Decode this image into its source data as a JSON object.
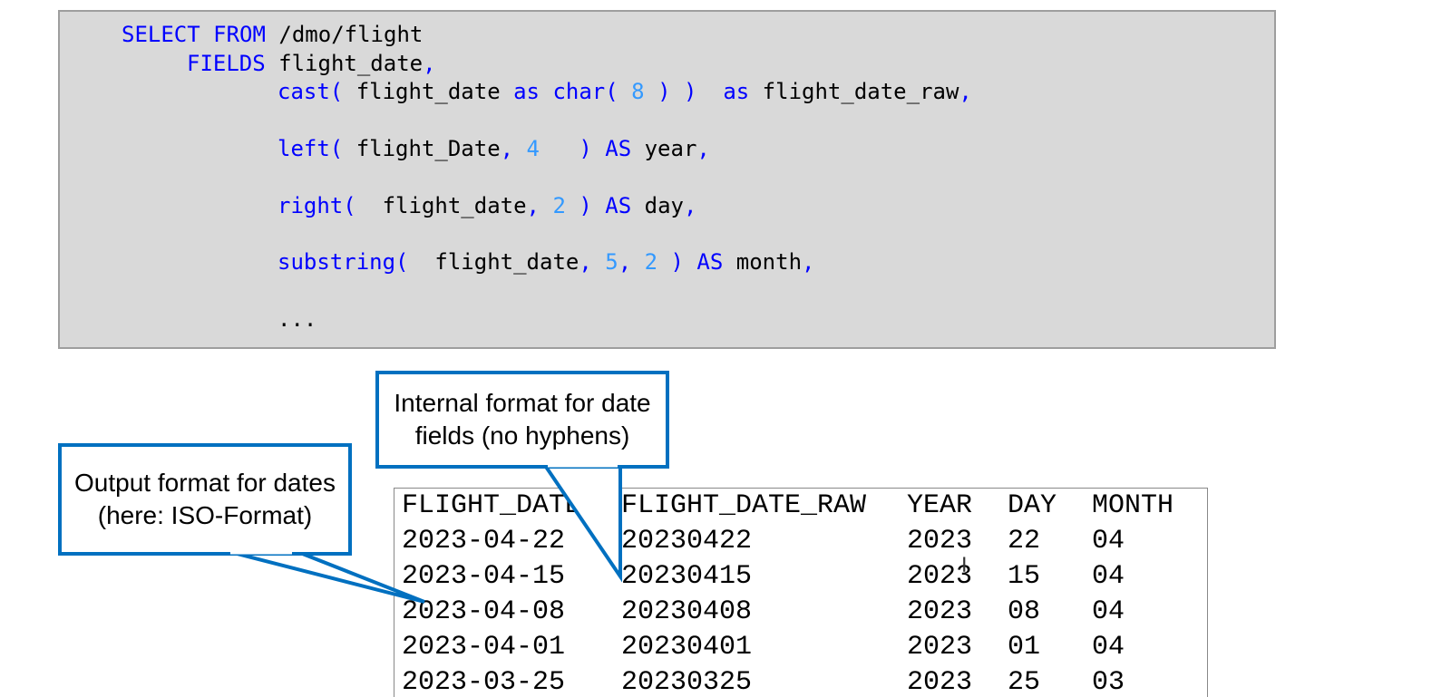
{
  "code": {
    "l1": {
      "kw": "SELECT FROM",
      "text": " /dmo/flight"
    },
    "l2": {
      "kw": "FIELDS",
      "text": " flight_date",
      "p": ","
    },
    "l3": {
      "fn": "cast(",
      "a": " flight_date ",
      "kw1": "as",
      "fn2": " char(",
      "n": " 8 ",
      "close": ") )",
      "kw2": "as",
      "b": " flight_date_raw",
      "p": ","
    },
    "l4": {
      "fn": "left(",
      "a": " flight_Date",
      "c": ",",
      "n": " 4",
      "close": "   )",
      "kw": " AS",
      "b": " year",
      "p": ","
    },
    "l5": {
      "fn": "right(",
      "a": "  flight_date",
      "c": ",",
      "n": " 2",
      "close": " )",
      "kw": " AS",
      "b": " day",
      "p": ","
    },
    "l6": {
      "fn": "substring(",
      "a": "  flight_date",
      "c1": ",",
      "n1": " 5",
      "c2": ",",
      "n2": " 2",
      "close": " )",
      "kw": " AS",
      "b": " month",
      "p": ","
    },
    "l7": "..."
  },
  "callouts": {
    "internal": "Internal format for date fields (no hyphens)",
    "output": "Output format for dates (here: ISO-Format)"
  },
  "table": {
    "headers": [
      "FLIGHT_DATE",
      "FLIGHT_DATE_RAW",
      "YEAR",
      "DAY",
      "MONTH"
    ],
    "rows": [
      [
        "2023-04-22",
        "20230422",
        "2023",
        "22",
        "04"
      ],
      [
        "2023-04-15",
        "20230415",
        "2023",
        "15",
        "04"
      ],
      [
        "2023-04-08",
        "20230408",
        "2023",
        "08",
        "04"
      ],
      [
        "2023-04-01",
        "20230401",
        "2023",
        "01",
        "04"
      ],
      [
        "2023-03-25",
        "20230325",
        "2023",
        "25",
        "03"
      ]
    ]
  },
  "colors": {
    "callout_border": "#0070c0",
    "keyword": "#0000ff",
    "number": "#3399ff"
  }
}
